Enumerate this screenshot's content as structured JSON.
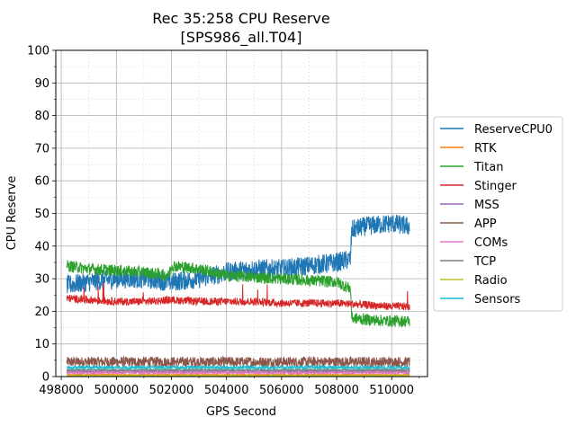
{
  "chart_data": {
    "type": "line",
    "title": "Rec 35:258 CPU Reserve",
    "subtitle": "[SPS986_all.T04]",
    "xlabel": "GPS Second",
    "ylabel": "CPU Reserve",
    "xlim": [
      497800,
      511300
    ],
    "ylim": [
      0,
      100
    ],
    "x_ticks": [
      498000,
      500000,
      502000,
      504000,
      506000,
      508000,
      510000
    ],
    "x_tick_labels": [
      "498000",
      "500000",
      "502000",
      "504000",
      "506000",
      "508000",
      "510000"
    ],
    "y_ticks": [
      0,
      10,
      20,
      30,
      40,
      50,
      60,
      70,
      80,
      90,
      100
    ],
    "y_tick_labels": [
      "0",
      "10",
      "20",
      "30",
      "40",
      "50",
      "60",
      "70",
      "80",
      "90",
      "100"
    ],
    "grid": "major solid, minor dotted",
    "legend_position": "right, outside",
    "series": [
      {
        "name": "ReserveCPU0",
        "color": "#1f77b4",
        "noise": 3.0,
        "x": [
          498200,
          499000,
          500000,
          501000,
          502000,
          503000,
          504000,
          505000,
          506000,
          507000,
          508000,
          508500,
          508550,
          509000,
          510000,
          510650
        ],
        "y": [
          28,
          29,
          30,
          30,
          29,
          30,
          32,
          33,
          33,
          34,
          35,
          36,
          45,
          46,
          47,
          46
        ]
      },
      {
        "name": "RTK",
        "color": "#ff7f0e",
        "noise": 0.3,
        "x": [
          498200,
          510650
        ],
        "y": [
          0.5,
          0.5
        ]
      },
      {
        "name": "Titan",
        "color": "#2ca02c",
        "noise": 1.8,
        "x": [
          498200,
          499000,
          500000,
          501000,
          501900,
          502000,
          503000,
          504000,
          505000,
          506000,
          507000,
          508000,
          508500,
          508550,
          509000,
          510000,
          510650
        ],
        "y": [
          34,
          33,
          32.5,
          32,
          31,
          34,
          33,
          31,
          30.5,
          30,
          29.5,
          29,
          27,
          18,
          17.5,
          17,
          17
        ]
      },
      {
        "name": "Stinger",
        "color": "#d62728",
        "noise": 1.2,
        "x": [
          498200,
          499000,
          500000,
          501000,
          502000,
          503000,
          504000,
          505000,
          506000,
          507000,
          508000,
          509000,
          510000,
          510650
        ],
        "y": [
          24,
          23.5,
          23,
          23,
          23.5,
          23,
          23,
          23,
          22.5,
          22.5,
          22.5,
          22,
          21.5,
          21.5
        ]
      },
      {
        "name": "MSS",
        "color": "#9467bd",
        "noise": 0.3,
        "x": [
          498200,
          510650
        ],
        "y": [
          1.5,
          1.5
        ]
      },
      {
        "name": "APP",
        "color": "#8c564b",
        "noise": 1.6,
        "x": [
          498200,
          510650
        ],
        "y": [
          4.5,
          4.5
        ]
      },
      {
        "name": "COMs",
        "color": "#e377c2",
        "noise": 0.4,
        "x": [
          498200,
          510650
        ],
        "y": [
          1.2,
          1.2
        ]
      },
      {
        "name": "TCP",
        "color": "#7f7f7f",
        "noise": 0.3,
        "x": [
          498200,
          510650
        ],
        "y": [
          2.0,
          2.0
        ]
      },
      {
        "name": "Radio",
        "color": "#bcbd22",
        "noise": 0.2,
        "x": [
          498200,
          510650
        ],
        "y": [
          0.3,
          0.3
        ]
      },
      {
        "name": "Sensors",
        "color": "#17becf",
        "noise": 0.5,
        "x": [
          498200,
          510650
        ],
        "y": [
          2.8,
          2.8
        ]
      }
    ]
  }
}
